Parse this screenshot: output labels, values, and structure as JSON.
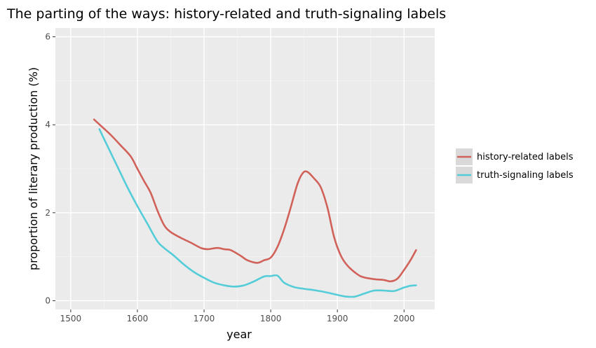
{
  "chart_data": {
    "type": "line",
    "title": "The parting of the ways: history-related and truth-signaling labels",
    "xlabel": "year",
    "ylabel": "proportion of literary production (%)",
    "xlim": [
      1477,
      2046
    ],
    "ylim": [
      -0.2,
      6.2
    ],
    "xticks": [
      1500,
      1600,
      1700,
      1800,
      1900,
      2000
    ],
    "yticks": [
      0,
      2,
      4,
      6
    ],
    "grid": true,
    "legend_position": "right",
    "series": [
      {
        "name": "history-related labels",
        "color": "#d1625a",
        "points": [
          [
            1535,
            4.12
          ],
          [
            1545,
            3.98
          ],
          [
            1560,
            3.77
          ],
          [
            1575,
            3.53
          ],
          [
            1590,
            3.28
          ],
          [
            1600,
            3.0
          ],
          [
            1610,
            2.72
          ],
          [
            1620,
            2.45
          ],
          [
            1630,
            2.05
          ],
          [
            1640,
            1.72
          ],
          [
            1650,
            1.56
          ],
          [
            1665,
            1.43
          ],
          [
            1680,
            1.32
          ],
          [
            1695,
            1.2
          ],
          [
            1705,
            1.17
          ],
          [
            1720,
            1.2
          ],
          [
            1730,
            1.17
          ],
          [
            1740,
            1.15
          ],
          [
            1755,
            1.02
          ],
          [
            1765,
            0.92
          ],
          [
            1780,
            0.86
          ],
          [
            1790,
            0.92
          ],
          [
            1800,
            0.98
          ],
          [
            1810,
            1.22
          ],
          [
            1820,
            1.62
          ],
          [
            1830,
            2.12
          ],
          [
            1840,
            2.65
          ],
          [
            1848,
            2.9
          ],
          [
            1855,
            2.93
          ],
          [
            1865,
            2.78
          ],
          [
            1875,
            2.58
          ],
          [
            1885,
            2.12
          ],
          [
            1895,
            1.45
          ],
          [
            1905,
            1.03
          ],
          [
            1915,
            0.8
          ],
          [
            1930,
            0.6
          ],
          [
            1940,
            0.53
          ],
          [
            1955,
            0.49
          ],
          [
            1970,
            0.47
          ],
          [
            1980,
            0.44
          ],
          [
            1990,
            0.5
          ],
          [
            2000,
            0.7
          ],
          [
            2010,
            0.93
          ],
          [
            2018,
            1.15
          ]
        ]
      },
      {
        "name": "truth-signaling labels",
        "color": "#54cdd8",
        "points": [
          [
            1543,
            3.9
          ],
          [
            1555,
            3.52
          ],
          [
            1570,
            3.05
          ],
          [
            1585,
            2.58
          ],
          [
            1600,
            2.15
          ],
          [
            1615,
            1.75
          ],
          [
            1630,
            1.35
          ],
          [
            1640,
            1.2
          ],
          [
            1655,
            1.02
          ],
          [
            1670,
            0.82
          ],
          [
            1685,
            0.65
          ],
          [
            1700,
            0.52
          ],
          [
            1715,
            0.41
          ],
          [
            1730,
            0.35
          ],
          [
            1745,
            0.32
          ],
          [
            1760,
            0.35
          ],
          [
            1775,
            0.44
          ],
          [
            1790,
            0.55
          ],
          [
            1800,
            0.56
          ],
          [
            1810,
            0.57
          ],
          [
            1820,
            0.41
          ],
          [
            1835,
            0.31
          ],
          [
            1850,
            0.27
          ],
          [
            1865,
            0.24
          ],
          [
            1880,
            0.2
          ],
          [
            1895,
            0.15
          ],
          [
            1910,
            0.1
          ],
          [
            1925,
            0.09
          ],
          [
            1940,
            0.16
          ],
          [
            1955,
            0.23
          ],
          [
            1970,
            0.23
          ],
          [
            1985,
            0.22
          ],
          [
            2000,
            0.3
          ],
          [
            2010,
            0.34
          ],
          [
            2018,
            0.35
          ]
        ]
      }
    ]
  }
}
